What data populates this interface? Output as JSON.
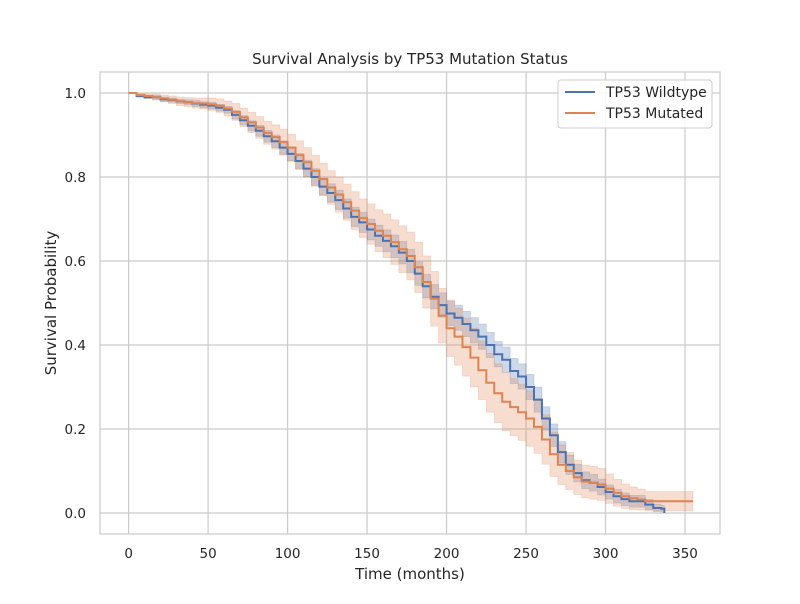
{
  "chart_data": {
    "type": "line",
    "title": "Survival Analysis by TP53 Mutation Status",
    "xlabel": "Time (months)",
    "ylabel": "Survival Probability",
    "xlim": [
      -18,
      372
    ],
    "ylim": [
      -0.05,
      1.05
    ],
    "x_ticks": [
      0,
      50,
      100,
      150,
      200,
      250,
      300,
      350
    ],
    "y_ticks": [
      0.0,
      0.2,
      0.4,
      0.6,
      0.8,
      1.0
    ],
    "x_tick_labels": [
      "0",
      "50",
      "100",
      "150",
      "200",
      "250",
      "300",
      "350"
    ],
    "y_tick_labels": [
      "0.0",
      "0.2",
      "0.4",
      "0.6",
      "0.8",
      "1.0"
    ],
    "grid": true,
    "legend_position": "top-right",
    "series": [
      {
        "name": "TP53 Wildtype",
        "color": "#4c72b0",
        "band_color": "#4c72b0",
        "x": [
          0,
          5,
          10,
          15,
          20,
          25,
          30,
          35,
          40,
          45,
          50,
          55,
          60,
          65,
          70,
          75,
          80,
          85,
          90,
          95,
          100,
          105,
          110,
          115,
          120,
          125,
          130,
          135,
          140,
          145,
          150,
          155,
          160,
          165,
          170,
          175,
          180,
          185,
          190,
          195,
          200,
          205,
          210,
          215,
          220,
          225,
          230,
          235,
          240,
          245,
          250,
          255,
          260,
          265,
          270,
          275,
          280,
          285,
          290,
          295,
          300,
          305,
          310,
          315,
          320,
          325,
          330,
          335,
          337
        ],
        "y": [
          1.0,
          0.993,
          0.99,
          0.99,
          0.985,
          0.983,
          0.98,
          0.978,
          0.975,
          0.972,
          0.97,
          0.965,
          0.96,
          0.948,
          0.935,
          0.922,
          0.91,
          0.897,
          0.885,
          0.87,
          0.855,
          0.838,
          0.82,
          0.8,
          0.777,
          0.762,
          0.745,
          0.725,
          0.705,
          0.692,
          0.675,
          0.66,
          0.648,
          0.635,
          0.62,
          0.6,
          0.57,
          0.54,
          0.515,
          0.495,
          0.475,
          0.465,
          0.45,
          0.435,
          0.42,
          0.4,
          0.378,
          0.365,
          0.338,
          0.325,
          0.3,
          0.27,
          0.225,
          0.185,
          0.145,
          0.115,
          0.095,
          0.078,
          0.072,
          0.062,
          0.05,
          0.04,
          0.033,
          0.028,
          0.028,
          0.02,
          0.012,
          0.01,
          0.0
        ],
        "lower": [
          1.0,
          0.99,
          0.987,
          0.985,
          0.98,
          0.978,
          0.975,
          0.972,
          0.968,
          0.965,
          0.962,
          0.957,
          0.952,
          0.938,
          0.924,
          0.91,
          0.897,
          0.883,
          0.87,
          0.854,
          0.838,
          0.82,
          0.8,
          0.78,
          0.756,
          0.74,
          0.722,
          0.702,
          0.682,
          0.668,
          0.65,
          0.635,
          0.622,
          0.608,
          0.593,
          0.572,
          0.542,
          0.512,
          0.486,
          0.466,
          0.446,
          0.435,
          0.42,
          0.405,
          0.39,
          0.37,
          0.348,
          0.335,
          0.308,
          0.295,
          0.27,
          0.24,
          0.197,
          0.158,
          0.12,
          0.092,
          0.074,
          0.058,
          0.052,
          0.043,
          0.033,
          0.024,
          0.018,
          0.014,
          0.014,
          0.008,
          0.003,
          0.002,
          0.0
        ],
        "upper": [
          1.0,
          0.996,
          0.993,
          0.995,
          0.99,
          0.988,
          0.985,
          0.984,
          0.982,
          0.979,
          0.978,
          0.973,
          0.968,
          0.958,
          0.946,
          0.934,
          0.923,
          0.911,
          0.9,
          0.886,
          0.872,
          0.856,
          0.84,
          0.82,
          0.798,
          0.784,
          0.768,
          0.748,
          0.728,
          0.716,
          0.7,
          0.685,
          0.674,
          0.662,
          0.647,
          0.628,
          0.598,
          0.568,
          0.544,
          0.524,
          0.504,
          0.495,
          0.48,
          0.465,
          0.45,
          0.43,
          0.408,
          0.395,
          0.368,
          0.355,
          0.33,
          0.3,
          0.253,
          0.212,
          0.17,
          0.138,
          0.116,
          0.098,
          0.092,
          0.081,
          0.067,
          0.056,
          0.048,
          0.042,
          0.042,
          0.032,
          0.021,
          0.018,
          0.005
        ]
      },
      {
        "name": "TP53 Mutated",
        "color": "#dd8452",
        "band_color": "#dd8452",
        "x": [
          0,
          5,
          10,
          15,
          20,
          25,
          30,
          35,
          40,
          45,
          50,
          55,
          60,
          65,
          70,
          75,
          80,
          85,
          90,
          95,
          100,
          105,
          110,
          115,
          120,
          125,
          130,
          135,
          140,
          145,
          150,
          155,
          160,
          165,
          170,
          175,
          180,
          185,
          190,
          195,
          200,
          205,
          210,
          215,
          220,
          225,
          230,
          235,
          240,
          245,
          250,
          255,
          260,
          265,
          270,
          275,
          280,
          285,
          290,
          295,
          300,
          305,
          310,
          315,
          320,
          325,
          330,
          340,
          355
        ],
        "y": [
          1.0,
          0.995,
          0.993,
          0.99,
          0.987,
          0.984,
          0.98,
          0.978,
          0.976,
          0.975,
          0.973,
          0.97,
          0.963,
          0.955,
          0.942,
          0.93,
          0.918,
          0.905,
          0.895,
          0.883,
          0.87,
          0.852,
          0.835,
          0.815,
          0.795,
          0.775,
          0.758,
          0.74,
          0.72,
          0.702,
          0.688,
          0.672,
          0.66,
          0.645,
          0.628,
          0.612,
          0.585,
          0.55,
          0.51,
          0.47,
          0.44,
          0.42,
          0.395,
          0.37,
          0.34,
          0.31,
          0.285,
          0.265,
          0.252,
          0.24,
          0.225,
          0.205,
          0.175,
          0.14,
          0.115,
          0.1,
          0.085,
          0.075,
          0.072,
          0.068,
          0.058,
          0.048,
          0.04,
          0.035,
          0.032,
          0.028,
          0.028,
          0.028,
          0.028
        ],
        "lower": [
          1.0,
          0.991,
          0.988,
          0.983,
          0.979,
          0.975,
          0.97,
          0.967,
          0.964,
          0.962,
          0.958,
          0.954,
          0.945,
          0.935,
          0.92,
          0.906,
          0.892,
          0.878,
          0.866,
          0.852,
          0.838,
          0.818,
          0.8,
          0.778,
          0.757,
          0.735,
          0.716,
          0.697,
          0.675,
          0.656,
          0.64,
          0.622,
          0.608,
          0.592,
          0.572,
          0.555,
          0.525,
          0.488,
          0.445,
          0.405,
          0.373,
          0.352,
          0.326,
          0.3,
          0.27,
          0.24,
          0.215,
          0.196,
          0.184,
          0.173,
          0.159,
          0.142,
          0.116,
          0.087,
          0.068,
          0.056,
          0.044,
          0.036,
          0.033,
          0.03,
          0.023,
          0.016,
          0.011,
          0.008,
          0.007,
          0.005,
          0.005,
          0.005,
          0.005
        ],
        "upper": [
          1.0,
          0.999,
          0.998,
          0.997,
          0.995,
          0.993,
          0.99,
          0.989,
          0.988,
          0.988,
          0.988,
          0.986,
          0.981,
          0.975,
          0.964,
          0.954,
          0.944,
          0.932,
          0.924,
          0.914,
          0.902,
          0.886,
          0.87,
          0.852,
          0.833,
          0.815,
          0.8,
          0.783,
          0.765,
          0.748,
          0.736,
          0.722,
          0.712,
          0.698,
          0.684,
          0.669,
          0.645,
          0.612,
          0.575,
          0.535,
          0.507,
          0.488,
          0.464,
          0.44,
          0.41,
          0.38,
          0.355,
          0.334,
          0.32,
          0.307,
          0.291,
          0.268,
          0.234,
          0.193,
          0.162,
          0.144,
          0.126,
          0.114,
          0.111,
          0.106,
          0.093,
          0.08,
          0.069,
          0.062,
          0.057,
          0.051,
          0.051,
          0.051,
          0.051
        ]
      }
    ]
  }
}
